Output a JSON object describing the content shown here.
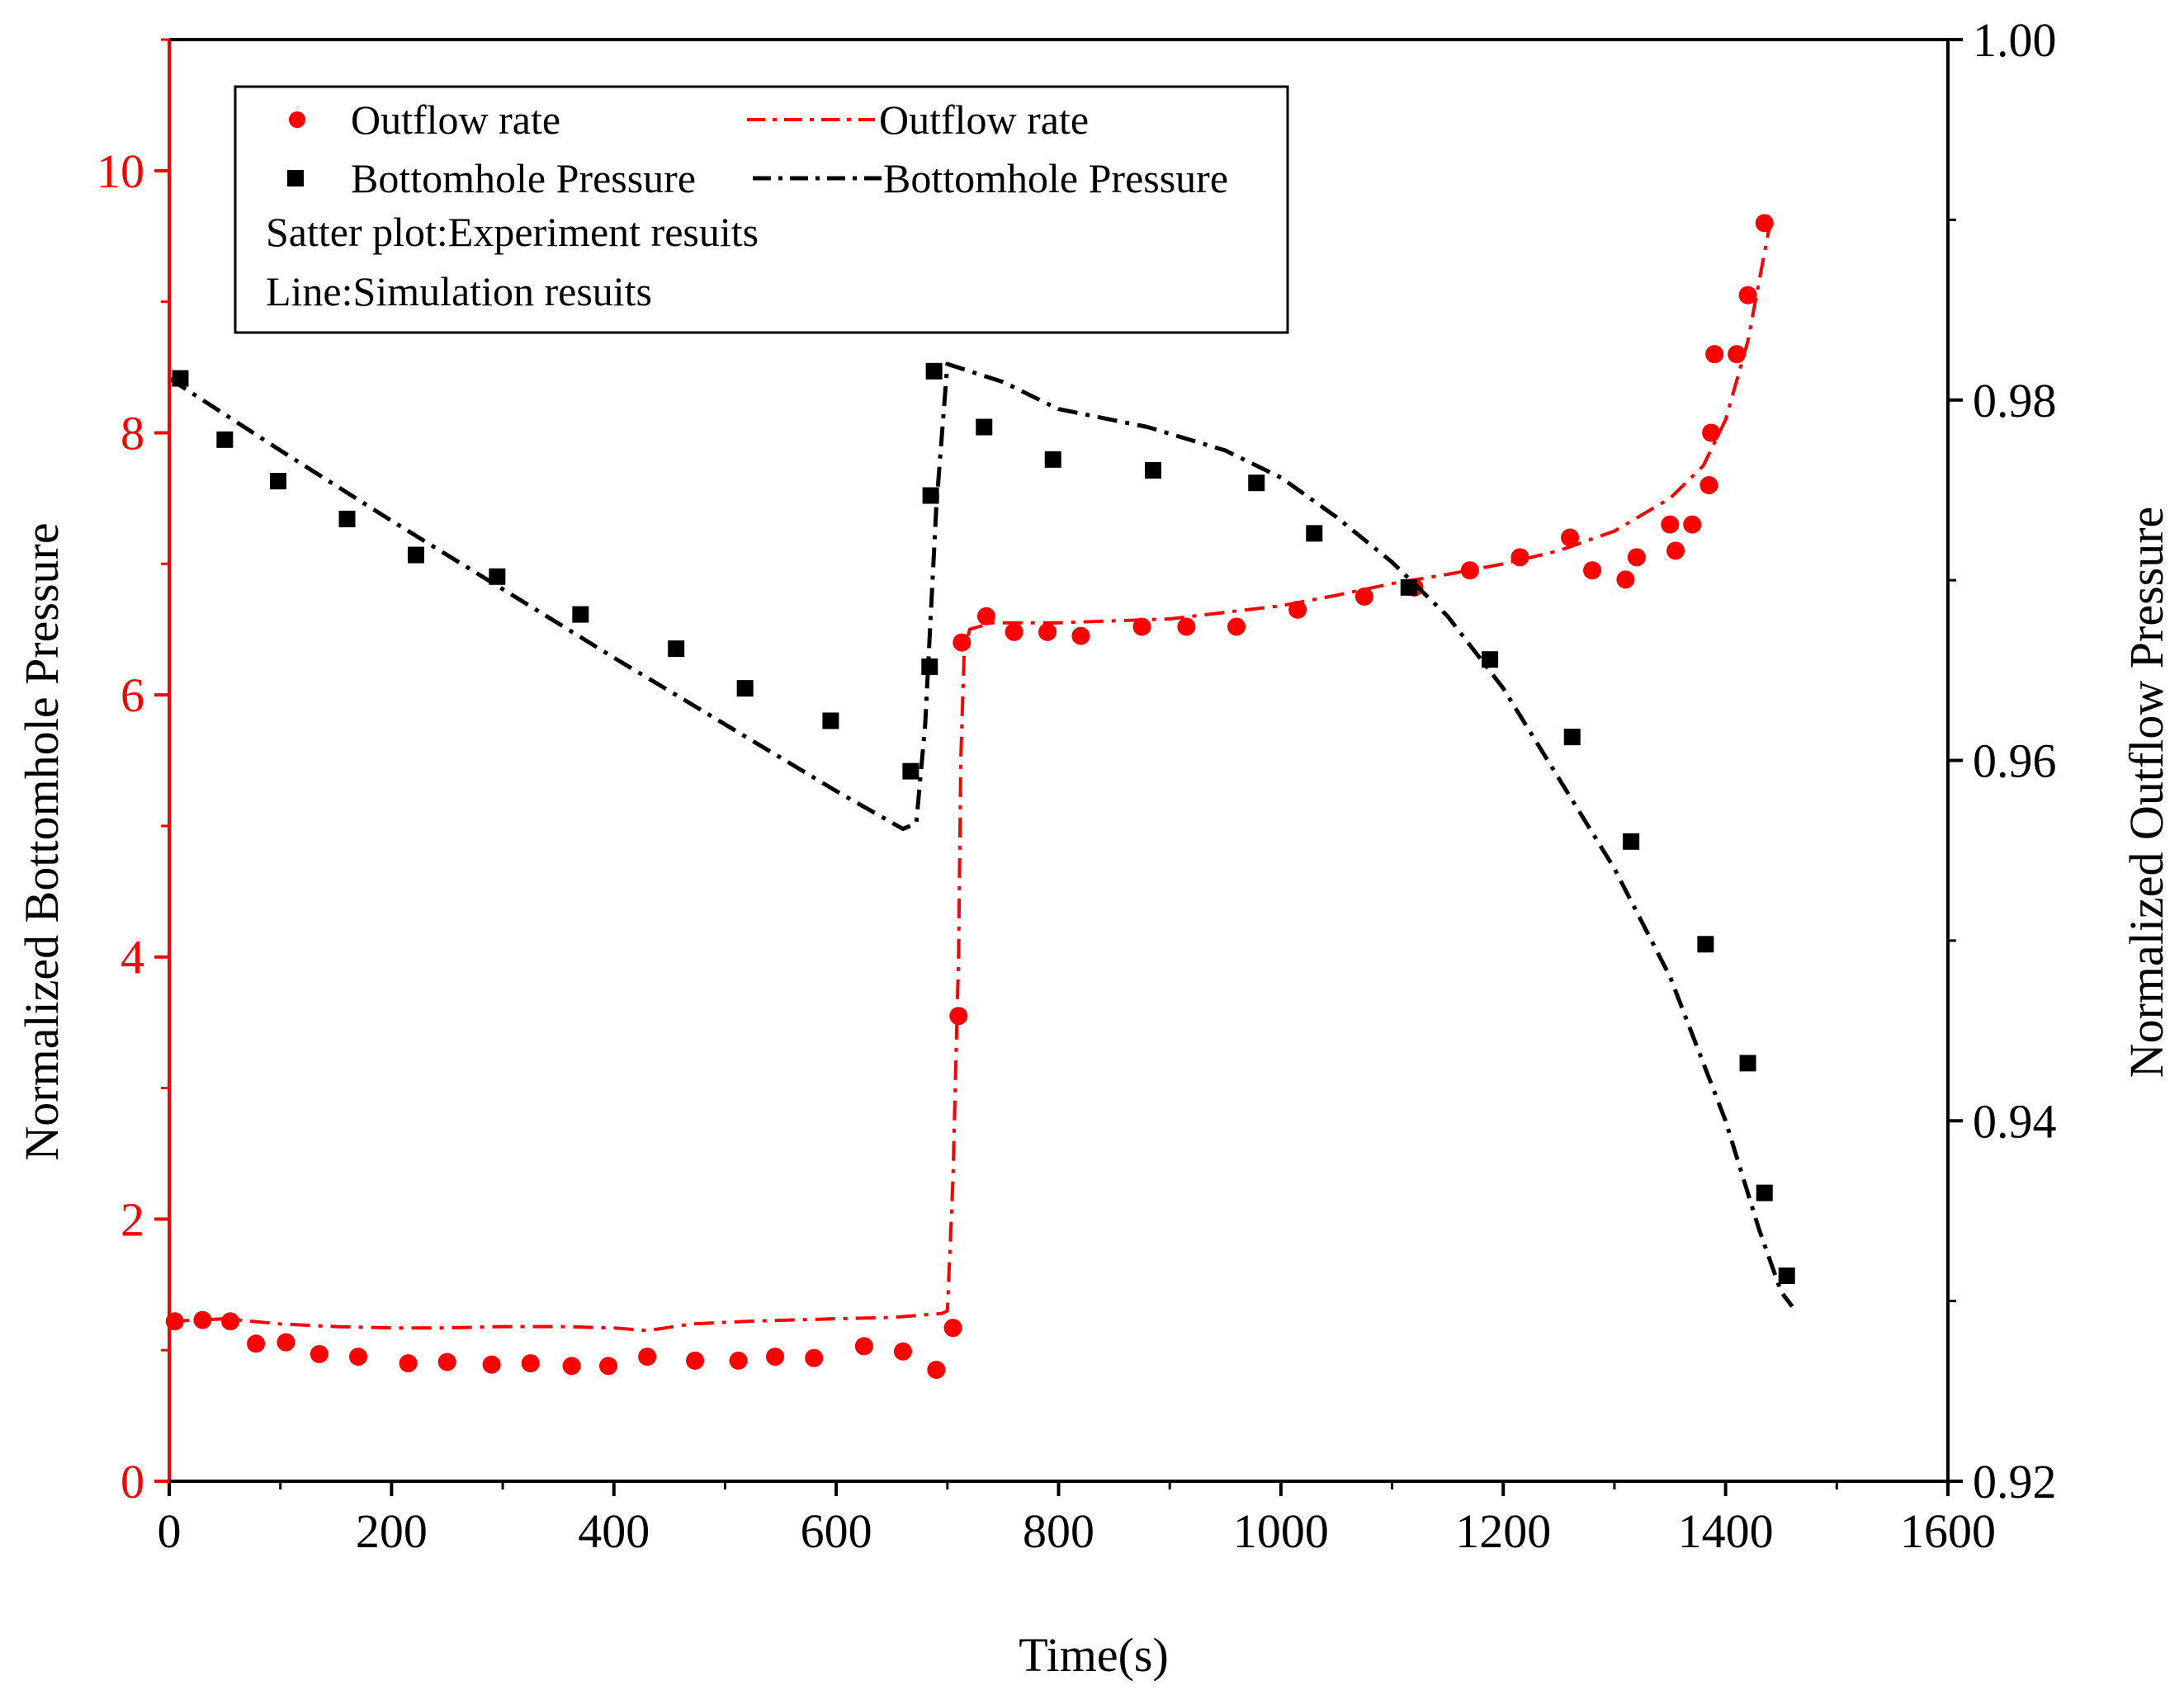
{
  "chart_data": {
    "type": "scatter",
    "title": "",
    "xlabel": "Time(s)",
    "ylabel_left": "Normalized Bottomhole Pressure",
    "ylabel_right": "Normalized Outflow Pressure",
    "xlim": [
      0,
      1600
    ],
    "ylim_left": [
      0,
      11
    ],
    "ylim_right": [
      0.92,
      1.0
    ],
    "x_ticks": [
      0,
      200,
      400,
      600,
      800,
      1000,
      1200,
      1400,
      1600
    ],
    "x_tick_labels": [
      "0",
      "200",
      "400",
      "600",
      "800",
      "1000",
      "1200",
      "1400",
      "1600"
    ],
    "y_left_ticks": [
      0,
      2,
      4,
      6,
      8,
      10
    ],
    "y_left_tick_labels": [
      "0",
      "2",
      "4",
      "6",
      "8",
      "10"
    ],
    "y_right_ticks": [
      0.92,
      0.94,
      0.96,
      0.98,
      1.0
    ],
    "y_right_tick_labels": [
      "0.92",
      "0.94",
      "0.96",
      "0.98",
      "1.00"
    ],
    "colors": {
      "outflow": "#ff0000",
      "pressure": "#000000",
      "left_axis": "#ff0000"
    },
    "legend": {
      "items": [
        {
          "label": "Outflow rate",
          "marker": "circle",
          "color": "#ff0000"
        },
        {
          "label": "Outflow rate",
          "marker": "dashdot-line",
          "color": "#ff0000"
        },
        {
          "label": "Bottomhole Pressure",
          "marker": "square",
          "color": "#000000"
        },
        {
          "label": "Bottomhole Pressure",
          "marker": "dashdot-line",
          "color": "#000000"
        }
      ],
      "notes": [
        "Satter plot:Experiment resuits",
        "Line:Simulation resuits"
      ],
      "placement": "top-left"
    },
    "series": [
      {
        "name": "Outflow rate (experiment)",
        "kind": "scatter",
        "marker": "circle",
        "axis": "left",
        "x": [
          5,
          30,
          55,
          78,
          105,
          135,
          170,
          215,
          250,
          290,
          325,
          362,
          395,
          430,
          473,
          512,
          545,
          580,
          625,
          660,
          690,
          705,
          710,
          713,
          735,
          760,
          790,
          820,
          875,
          915,
          960,
          1015,
          1075,
          1120,
          1170,
          1215,
          1260,
          1280,
          1310,
          1320,
          1350,
          1355,
          1370,
          1385,
          1387,
          1390,
          1410,
          1420,
          1435
        ],
        "y": [
          1.22,
          1.23,
          1.22,
          1.05,
          1.06,
          0.97,
          0.95,
          0.9,
          0.91,
          0.89,
          0.9,
          0.88,
          0.88,
          0.95,
          0.92,
          0.92,
          0.95,
          0.94,
          1.03,
          0.99,
          0.85,
          1.17,
          3.55,
          6.4,
          6.6,
          6.48,
          6.48,
          6.45,
          6.52,
          6.52,
          6.52,
          6.65,
          6.75,
          6.82,
          6.95,
          7.05,
          7.2,
          6.95,
          6.88,
          7.05,
          7.3,
          7.1,
          7.3,
          7.6,
          8.0,
          8.6,
          8.6,
          9.05,
          9.6
        ]
      },
      {
        "name": "Outflow rate (simulation)",
        "kind": "line",
        "style": "dashdot",
        "axis": "left",
        "x": [
          0,
          50,
          100,
          150,
          200,
          250,
          300,
          350,
          400,
          430,
          470,
          520,
          600,
          650,
          695,
          700,
          705,
          710,
          712,
          715,
          720,
          740,
          800,
          900,
          1000,
          1050,
          1100,
          1150,
          1200,
          1250,
          1300,
          1350,
          1380,
          1400,
          1420,
          1440
        ],
        "y": [
          1.22,
          1.24,
          1.2,
          1.18,
          1.17,
          1.17,
          1.18,
          1.18,
          1.17,
          1.15,
          1.2,
          1.22,
          1.24,
          1.25,
          1.28,
          1.3,
          2.3,
          4.0,
          5.5,
          6.3,
          6.5,
          6.55,
          6.55,
          6.58,
          6.68,
          6.76,
          6.85,
          6.92,
          7.0,
          7.1,
          7.25,
          7.5,
          7.75,
          8.1,
          8.7,
          9.6
        ]
      },
      {
        "name": "Bottomhole Pressure (experiment)",
        "kind": "scatter",
        "marker": "square",
        "axis": "right",
        "x": [
          10,
          50,
          98,
          160,
          222,
          295,
          370,
          456,
          518,
          595,
          667,
          684,
          685,
          688,
          733,
          795,
          885,
          978,
          1030,
          1115,
          1188,
          1262,
          1315,
          1382,
          1420,
          1435,
          1455
        ],
        "y": [
          0.9812,
          0.9778,
          0.9755,
          0.9734,
          0.9714,
          0.9702,
          0.9681,
          0.9662,
          0.964,
          0.9622,
          0.9594,
          0.9652,
          0.9747,
          0.9816,
          0.9785,
          0.9767,
          0.9761,
          0.9754,
          0.9726,
          0.9696,
          0.9656,
          0.9613,
          0.9555,
          0.9498,
          0.9432,
          0.936,
          0.9314
        ]
      },
      {
        "name": "Bottomhole Pressure (simulation)",
        "kind": "line",
        "style": "dashdot",
        "axis": "right",
        "x": [
          0,
          100,
          200,
          300,
          400,
          500,
          600,
          660,
          672,
          680,
          690,
          700,
          750,
          800,
          880,
          950,
          1000,
          1050,
          1100,
          1150,
          1200,
          1250,
          1300,
          1350,
          1400,
          1430,
          1450,
          1460
        ],
        "y": [
          0.9812,
          0.9772,
          0.9733,
          0.9695,
          0.9657,
          0.962,
          0.9583,
          0.9562,
          0.9565,
          0.962,
          0.974,
          0.982,
          0.981,
          0.9795,
          0.9785,
          0.9772,
          0.9757,
          0.9735,
          0.971,
          0.968,
          0.964,
          0.959,
          0.954,
          0.948,
          0.94,
          0.934,
          0.9305,
          0.9297
        ]
      }
    ]
  }
}
